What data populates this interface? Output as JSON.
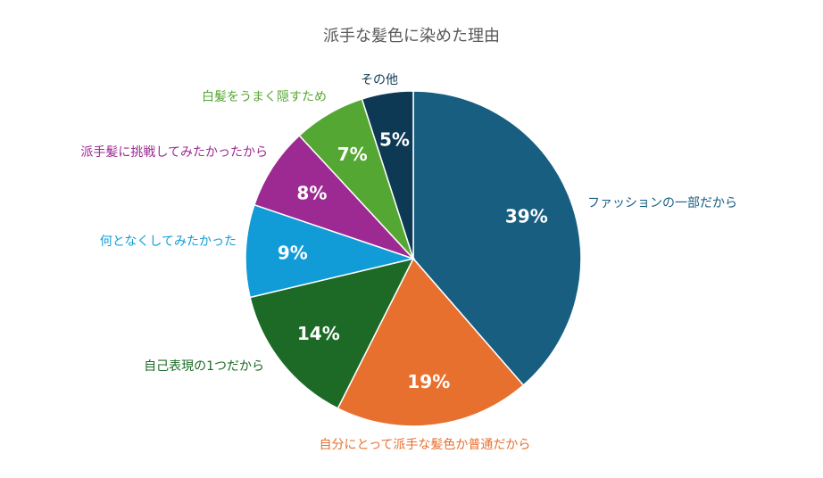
{
  "chart_data": {
    "type": "pie",
    "title": "派手な髪色に染めた理由",
    "start_angle_deg": 0,
    "direction": "clockwise",
    "slices": [
      {
        "label": "ファッションの一部だから",
        "value": 39,
        "value_label": "39%",
        "color": "#175E80",
        "label_color": "#175E80",
        "label_side": "right"
      },
      {
        "label": "自分にとって派手な髪色か普通だから",
        "value": 19,
        "value_label": "19%",
        "color": "#E8702F",
        "label_color": "#E8702F",
        "label_side": "below"
      },
      {
        "label": "自己表現の1つだから",
        "value": 14,
        "value_label": "14%",
        "color": "#1C6A26",
        "label_color": "#1C6A26",
        "label_side": "left"
      },
      {
        "label": "何となくしてみたかった",
        "value": 9,
        "value_label": "9%",
        "color": "#129CD7",
        "label_color": "#129CD7",
        "label_side": "left"
      },
      {
        "label": "派手髪に挑戦してみたかったから",
        "value": 8,
        "value_label": "8%",
        "color": "#9C2A92",
        "label_color": "#9C2A92",
        "label_side": "left"
      },
      {
        "label": "白髪をうまく隠すため",
        "value": 7,
        "value_label": "7%",
        "color": "#55A733",
        "label_color": "#55A733",
        "label_side": "left"
      },
      {
        "label": "その他",
        "value": 5,
        "value_label": "5%",
        "color": "#0E3954",
        "label_color": "#0E3954",
        "label_side": "above"
      }
    ]
  }
}
